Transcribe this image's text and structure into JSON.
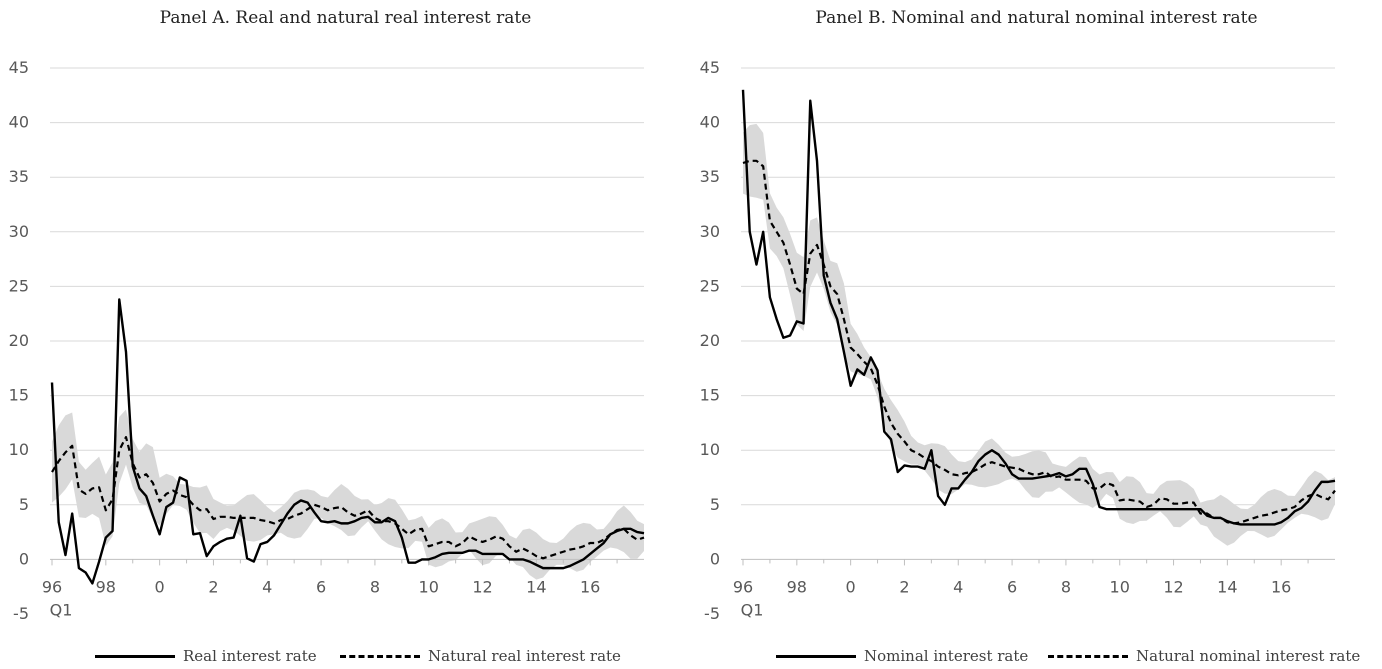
{
  "chart_data": [
    {
      "type": "line",
      "title": "Panel A. Real and natural real interest rate",
      "xlabel": "",
      "ylabel": "",
      "ylim": [
        -5,
        45
      ],
      "yticks": [
        "45",
        "40",
        "35",
        "30",
        "25",
        "20",
        "15",
        "10",
        "5",
        "0",
        "-5"
      ],
      "ytick_values": [
        45,
        40,
        35,
        30,
        25,
        20,
        15,
        10,
        5,
        0,
        -5
      ],
      "xticks": [
        "96",
        "98",
        "0",
        "2",
        "4",
        "6",
        "8",
        "10",
        "12",
        "14",
        "16"
      ],
      "xticks_sub": "Q1",
      "x_start": "1996Q1",
      "x_end": "2017Q4",
      "grid": true,
      "legend_position": "bottom",
      "series": [
        {
          "name": "Real interest rate",
          "style": "solid",
          "values": [
            16.2,
            3.4,
            0.4,
            4.2,
            -0.8,
            -1.2,
            -2.2,
            -0.2,
            2,
            2.6,
            23.8,
            19,
            8.5,
            6.5,
            5.8,
            4,
            2.3,
            4.8,
            5.2,
            7.5,
            7.2,
            2.3,
            2.4,
            0.3,
            1.2,
            1.6,
            1.9,
            2,
            4,
            0.1,
            -0.2,
            1.4,
            1.6,
            2.2,
            3.2,
            4.2,
            5,
            5.4,
            5.2,
            4.3,
            3.5,
            3.4,
            3.5,
            3.3,
            3.3,
            3.5,
            3.8,
            3.9,
            3.4,
            3.4,
            3.8,
            3.5,
            2,
            -0.3,
            -0.3,
            0,
            0,
            0.2,
            0.5,
            0.6,
            0.6,
            0.6,
            0.8,
            0.8,
            0.5,
            0.5,
            0.5,
            0.5,
            0,
            0,
            0,
            -0.2,
            -0.5,
            -0.8,
            -0.8,
            -0.8,
            -0.8,
            -0.6,
            -0.3,
            0,
            0.5,
            1,
            1.5,
            2.3,
            2.6,
            2.8,
            2.8,
            2.5,
            2.4
          ]
        },
        {
          "name": "Natural real interest rate",
          "style": "dashed",
          "values": [
            8,
            9,
            9.8,
            10.4,
            6.4,
            6,
            6.5,
            6.6,
            4.5,
            5.5,
            10,
            11.2,
            8.8,
            7.5,
            7.8,
            7,
            5.3,
            6,
            6.3,
            5.9,
            5.7,
            5,
            4.5,
            4.6,
            3.7,
            3.9,
            3.9,
            3.8,
            3.8,
            3.8,
            3.8,
            3.6,
            3.5,
            3.3,
            3.6,
            3.7,
            4,
            4.2,
            4.6,
            5,
            4.8,
            4.5,
            4.7,
            4.8,
            4.3,
            4,
            4.2,
            4.5,
            3.8,
            3.5,
            3.5,
            3.3,
            2.8,
            2.3,
            2.7,
            2.8,
            1.2,
            1.4,
            1.6,
            1.6,
            1.2,
            1.5,
            2.1,
            1.8,
            1.6,
            1.8,
            2.1,
            1.9,
            1.2,
            0.7,
            1,
            0.7,
            0.3,
            0.1,
            0.3,
            0.5,
            0.7,
            0.9,
            1,
            1.2,
            1.5,
            1.5,
            1.8,
            2.3,
            2.7,
            2.8,
            2.2,
            1.8,
            2
          ]
        }
      ]
    },
    {
      "type": "line",
      "title": "Panel B. Nominal and natural nominal interest rate",
      "xlabel": "",
      "ylabel": "",
      "ylim": [
        -5,
        45
      ],
      "yticks": [
        "45",
        "40",
        "35",
        "30",
        "25",
        "20",
        "15",
        "10",
        "5",
        "0",
        "-5"
      ],
      "ytick_values": [
        45,
        40,
        35,
        30,
        25,
        20,
        15,
        10,
        5,
        0,
        -5
      ],
      "xticks": [
        "96",
        "98",
        "0",
        "2",
        "4",
        "6",
        "8",
        "10",
        "12",
        "14",
        "16"
      ],
      "xticks_sub": "Q1",
      "x_start": "1996Q1",
      "x_end": "2017Q4",
      "grid": true,
      "legend_position": "bottom",
      "series": [
        {
          "name": "Nominal interest rate",
          "style": "solid",
          "values": [
            43,
            30,
            27,
            30,
            24,
            22,
            20.3,
            20.5,
            21.8,
            21.6,
            42,
            36.5,
            26,
            23.5,
            22,
            19,
            15.9,
            17.4,
            16.9,
            18.5,
            17.3,
            11.7,
            11,
            8,
            8.6,
            8.5,
            8.5,
            8.3,
            10,
            5.8,
            5,
            6.5,
            6.5,
            7.3,
            8,
            9,
            9.6,
            10,
            9.6,
            8.8,
            7.8,
            7.4,
            7.4,
            7.4,
            7.5,
            7.6,
            7.7,
            7.9,
            7.6,
            7.8,
            8.3,
            8.3,
            6.9,
            4.8,
            4.6,
            4.6,
            4.6,
            4.6,
            4.6,
            4.6,
            4.6,
            4.6,
            4.6,
            4.6,
            4.6,
            4.6,
            4.6,
            4.6,
            4.6,
            4,
            3.8,
            3.8,
            3.5,
            3.3,
            3.2,
            3.2,
            3.2,
            3.2,
            3.2,
            3.2,
            3.4,
            3.8,
            4.4,
            4.7,
            5.3,
            6.3,
            7.1,
            7.1,
            7.2
          ]
        },
        {
          "name": "Natural nominal interest rate",
          "style": "dashed",
          "values": [
            36.3,
            36.5,
            36.5,
            36,
            31,
            30,
            29,
            27,
            24.8,
            24.3,
            28,
            28.8,
            27,
            25,
            24.3,
            22,
            19.4,
            18.8,
            18.1,
            17.5,
            16,
            14,
            12.5,
            11.5,
            10.8,
            10,
            9.7,
            9.3,
            9,
            8.5,
            8.2,
            7.8,
            7.7,
            7.9,
            8,
            8.3,
            8.7,
            8.9,
            8.7,
            8.5,
            8.4,
            8.3,
            8,
            7.8,
            7.8,
            8,
            7.5,
            7.6,
            7.3,
            7.3,
            7.3,
            7.2,
            6.5,
            6.5,
            7,
            6.8,
            5.4,
            5.5,
            5.4,
            5.3,
            4.8,
            5,
            5.6,
            5.5,
            5.1,
            5.1,
            5.2,
            5.2,
            4.2,
            4.2,
            3.8,
            3.8,
            3.4,
            3.3,
            3.4,
            3.6,
            3.8,
            4,
            4.1,
            4.3,
            4.5,
            4.6,
            4.8,
            5.4,
            5.8,
            6,
            5.7,
            5.5,
            6.3
          ]
        }
      ]
    }
  ]
}
